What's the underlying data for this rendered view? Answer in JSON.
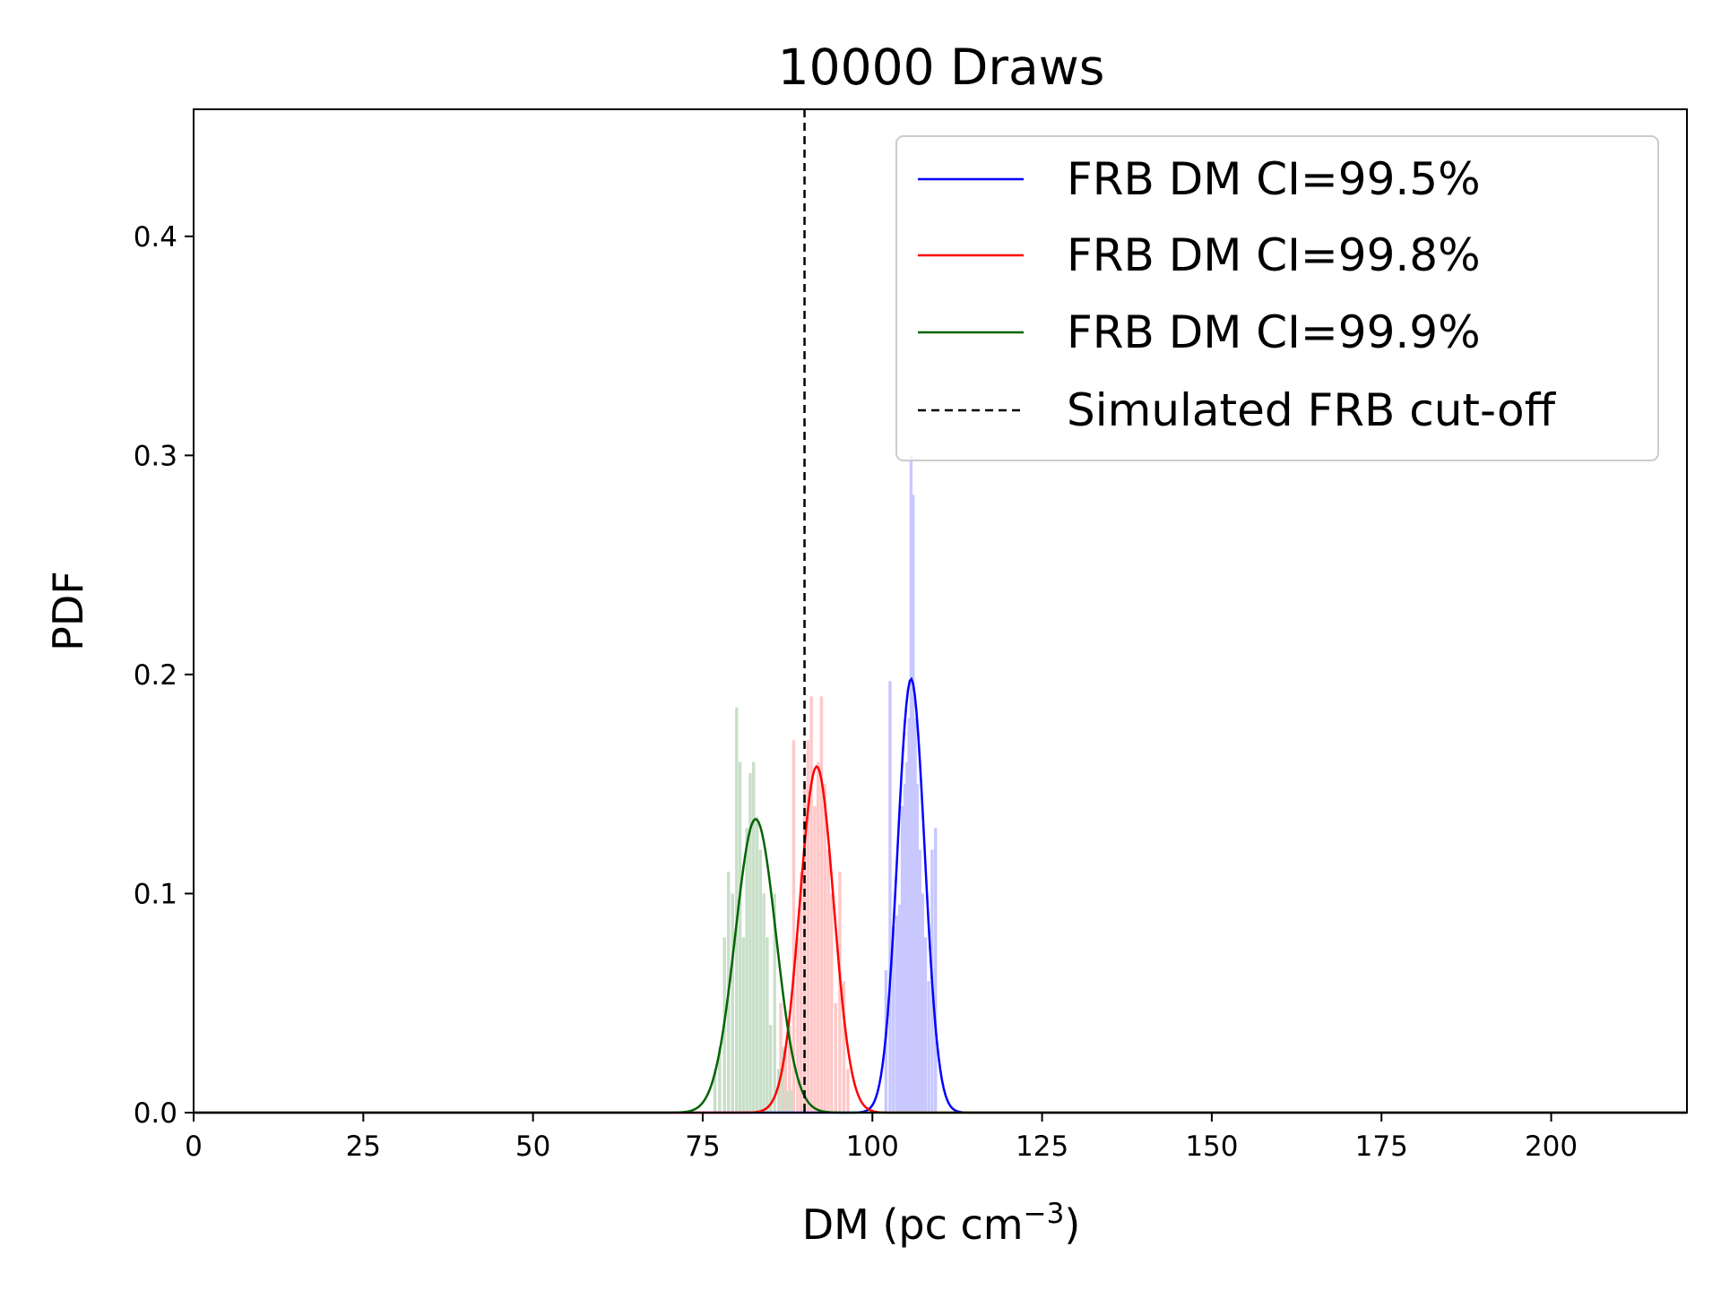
{
  "chart_data": {
    "type": "histogram+line",
    "title": "10000 Draws",
    "xlabel": "DM (pc cm",
    "xlabel_sup": "−3",
    "xlabel_close": ")",
    "ylabel": "PDF",
    "xlim": [
      0,
      220
    ],
    "ylim": [
      0,
      0.458
    ],
    "xticks": [
      0,
      25,
      50,
      75,
      100,
      125,
      150,
      175,
      200
    ],
    "yticks": [
      0.0,
      0.1,
      0.2,
      0.3,
      0.4
    ],
    "ytick_labels": [
      "0.0",
      "0.1",
      "0.2",
      "0.3",
      "0.4"
    ],
    "grid": false,
    "legend_position": "top-right",
    "cutoff": {
      "name": "Simulated FRB cut-off",
      "x": 90,
      "color": "#000000",
      "dash": "dashed"
    },
    "series": [
      {
        "name": "FRB DM CI=99.5%",
        "color": "#0000ff",
        "fill": "#c8c8ff",
        "curve": {
          "mean": 105.7,
          "sigma": 2.0,
          "peak": 0.198
        },
        "hist": {
          "x": [
            102.0,
            102.6,
            103.1,
            103.6,
            104.0,
            104.4,
            104.8,
            105.1,
            105.4,
            105.7,
            106.0,
            106.3,
            106.6,
            107.0,
            107.4,
            107.8,
            108.3,
            108.8,
            109.3
          ],
          "y": [
            0.065,
            0.197,
            0.085,
            0.09,
            0.095,
            0.14,
            0.15,
            0.16,
            0.18,
            0.3,
            0.282,
            0.18,
            0.15,
            0.12,
            0.1,
            0.08,
            0.06,
            0.12,
            0.13
          ]
        }
      },
      {
        "name": "FRB DM CI=99.8%",
        "color": "#ff0000",
        "fill": "#ffc8c8",
        "curve": {
          "mean": 91.8,
          "sigma": 2.5,
          "peak": 0.158
        },
        "hist": {
          "x": [
            86.5,
            87.2,
            87.8,
            88.4,
            89.0,
            89.5,
            90.0,
            90.5,
            91.0,
            91.5,
            92.0,
            92.5,
            93.0,
            93.5,
            94.0,
            94.6,
            95.2,
            95.8,
            96.4
          ],
          "y": [
            0.05,
            0.03,
            0.04,
            0.17,
            0.08,
            0.11,
            0.15,
            0.17,
            0.19,
            0.14,
            0.16,
            0.19,
            0.15,
            0.12,
            0.1,
            0.05,
            0.11,
            0.06,
            0.02
          ]
        }
      },
      {
        "name": "FRB DM CI=99.9%",
        "color": "#006400",
        "fill": "#c8dfc8",
        "curve": {
          "mean": 82.8,
          "sigma": 3.0,
          "peak": 0.134
        },
        "hist": {
          "x": [
            76.8,
            77.5,
            78.2,
            78.8,
            79.4,
            80.0,
            80.5,
            81.0,
            81.5,
            82.0,
            82.5,
            83.0,
            83.5,
            84.0,
            84.5,
            85.0,
            85.6,
            86.2,
            86.8,
            87.4,
            88.0
          ],
          "y": [
            0.02,
            0.03,
            0.08,
            0.11,
            0.1,
            0.185,
            0.16,
            0.08,
            0.13,
            0.155,
            0.16,
            0.135,
            0.12,
            0.1,
            0.08,
            0.04,
            0.1,
            0.02,
            0.03,
            0.01,
            0.01
          ]
        }
      }
    ]
  }
}
